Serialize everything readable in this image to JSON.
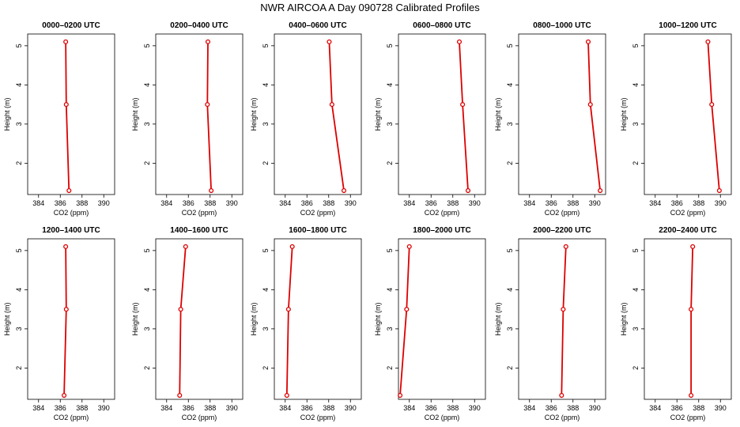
{
  "figure": {
    "title": "NWR AIRCOA A   Day 090728   Calibrated Profiles"
  },
  "colors": {
    "series": "#dd0000",
    "axis": "#000000",
    "background": "#ffffff"
  },
  "chart_data": [
    {
      "type": "line",
      "title": "0000–0200 UTC",
      "xlabel": "CO2 (ppm)",
      "ylabel": "Height (m)",
      "xlim": [
        383,
        391
      ],
      "ylim": [
        1.2,
        5.3
      ],
      "xticks": [
        384,
        386,
        388,
        390
      ],
      "yticks": [
        2,
        3,
        4,
        5
      ],
      "grid": false,
      "legend": "none",
      "x": [
        386.8,
        386.55,
        386.5
      ],
      "y": [
        1.3,
        3.5,
        5.1
      ]
    },
    {
      "type": "line",
      "title": "0200–0400 UTC",
      "xlabel": "CO2 (ppm)",
      "ylabel": "Height (m)",
      "xlim": [
        383,
        391
      ],
      "ylim": [
        1.2,
        5.3
      ],
      "xticks": [
        384,
        386,
        388,
        390
      ],
      "yticks": [
        2,
        3,
        4,
        5
      ],
      "grid": false,
      "legend": "none",
      "x": [
        388.1,
        387.75,
        387.8
      ],
      "y": [
        1.3,
        3.5,
        5.1
      ]
    },
    {
      "type": "line",
      "title": "0400–0600 UTC",
      "xlabel": "CO2 (ppm)",
      "ylabel": "Height (m)",
      "xlim": [
        383,
        391
      ],
      "ylim": [
        1.2,
        5.3
      ],
      "xticks": [
        384,
        386,
        388,
        390
      ],
      "yticks": [
        2,
        3,
        4,
        5
      ],
      "grid": false,
      "legend": "none",
      "x": [
        389.4,
        388.3,
        388.05
      ],
      "y": [
        1.3,
        3.5,
        5.1
      ]
    },
    {
      "type": "line",
      "title": "0600–0800 UTC",
      "xlabel": "CO2 (ppm)",
      "ylabel": "Height (m)",
      "xlim": [
        383,
        391
      ],
      "ylim": [
        1.2,
        5.3
      ],
      "xticks": [
        384,
        386,
        388,
        390
      ],
      "yticks": [
        2,
        3,
        4,
        5
      ],
      "grid": false,
      "legend": "none",
      "x": [
        389.4,
        388.9,
        388.6
      ],
      "y": [
        1.3,
        3.5,
        5.1
      ]
    },
    {
      "type": "line",
      "title": "0800–1000 UTC",
      "xlabel": "CO2 (ppm)",
      "ylabel": "Height (m)",
      "xlim": [
        383,
        391
      ],
      "ylim": [
        1.2,
        5.3
      ],
      "xticks": [
        384,
        386,
        388,
        390
      ],
      "yticks": [
        2,
        3,
        4,
        5
      ],
      "grid": false,
      "legend": "none",
      "x": [
        390.5,
        389.6,
        389.4
      ],
      "y": [
        1.3,
        3.5,
        5.1
      ]
    },
    {
      "type": "line",
      "title": "1000–1200 UTC",
      "xlabel": "CO2 (ppm)",
      "ylabel": "Height (m)",
      "xlim": [
        383,
        391
      ],
      "ylim": [
        1.2,
        5.3
      ],
      "xticks": [
        384,
        386,
        388,
        390
      ],
      "yticks": [
        2,
        3,
        4,
        5
      ],
      "grid": false,
      "legend": "none",
      "x": [
        389.9,
        389.2,
        388.85
      ],
      "y": [
        1.3,
        3.5,
        5.1
      ]
    },
    {
      "type": "line",
      "title": "1200–1400 UTC",
      "xlabel": "CO2 (ppm)",
      "ylabel": "Height (m)",
      "xlim": [
        383,
        391
      ],
      "ylim": [
        1.2,
        5.3
      ],
      "xticks": [
        384,
        386,
        388,
        390
      ],
      "yticks": [
        2,
        3,
        4,
        5
      ],
      "grid": false,
      "legend": "none",
      "x": [
        386.35,
        386.55,
        386.5
      ],
      "y": [
        1.3,
        3.5,
        5.1
      ]
    },
    {
      "type": "line",
      "title": "1400–1600 UTC",
      "xlabel": "CO2 (ppm)",
      "ylabel": "Height (m)",
      "xlim": [
        383,
        391
      ],
      "ylim": [
        1.2,
        5.3
      ],
      "xticks": [
        384,
        386,
        388,
        390
      ],
      "yticks": [
        2,
        3,
        4,
        5
      ],
      "grid": false,
      "legend": "none",
      "x": [
        385.2,
        385.3,
        385.75
      ],
      "y": [
        1.3,
        3.5,
        5.1
      ]
    },
    {
      "type": "line",
      "title": "1600–1800 UTC",
      "xlabel": "CO2 (ppm)",
      "ylabel": "Height (m)",
      "xlim": [
        383,
        391
      ],
      "ylim": [
        1.2,
        5.3
      ],
      "xticks": [
        384,
        386,
        388,
        390
      ],
      "yticks": [
        2,
        3,
        4,
        5
      ],
      "grid": false,
      "legend": "none",
      "x": [
        384.15,
        384.3,
        384.65
      ],
      "y": [
        1.3,
        3.5,
        5.1
      ]
    },
    {
      "type": "line",
      "title": "1800–2000 UTC",
      "xlabel": "CO2 (ppm)",
      "ylabel": "Height (m)",
      "xlim": [
        383,
        391
      ],
      "ylim": [
        1.2,
        5.3
      ],
      "xticks": [
        384,
        386,
        388,
        390
      ],
      "yticks": [
        2,
        3,
        4,
        5
      ],
      "grid": false,
      "legend": "none",
      "x": [
        383.15,
        383.75,
        384.0
      ],
      "y": [
        1.3,
        3.5,
        5.1
      ]
    },
    {
      "type": "line",
      "title": "2000–2200 UTC",
      "xlabel": "CO2 (ppm)",
      "ylabel": "Height (m)",
      "xlim": [
        383,
        391
      ],
      "ylim": [
        1.2,
        5.3
      ],
      "xticks": [
        384,
        386,
        388,
        390
      ],
      "yticks": [
        2,
        3,
        4,
        5
      ],
      "grid": false,
      "legend": "none",
      "x": [
        386.95,
        387.1,
        387.35
      ],
      "y": [
        1.3,
        3.5,
        5.1
      ]
    },
    {
      "type": "line",
      "title": "2200–2400 UTC",
      "xlabel": "CO2 (ppm)",
      "ylabel": "Height (m)",
      "xlim": [
        383,
        391
      ],
      "ylim": [
        1.2,
        5.3
      ],
      "xticks": [
        384,
        386,
        388,
        390
      ],
      "yticks": [
        2,
        3,
        4,
        5
      ],
      "grid": false,
      "legend": "none",
      "x": [
        387.3,
        387.3,
        387.45
      ],
      "y": [
        1.3,
        3.5,
        5.1
      ]
    }
  ]
}
